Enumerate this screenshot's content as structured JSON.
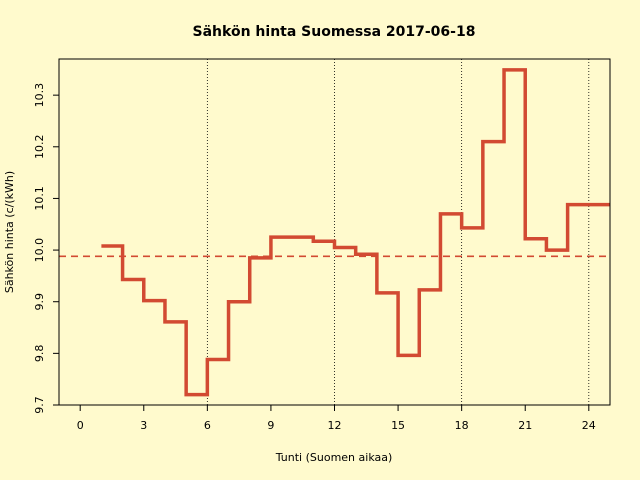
{
  "chart_data": {
    "type": "line",
    "title": "Sähkön hinta Suomessa 2017-06-18",
    "xlabel": "Tunti (Suomen aikaa)",
    "ylabel": "Sähkön hinta (c/(kWh)",
    "xlim": [
      -1,
      25
    ],
    "ylim": [
      9.7,
      10.37
    ],
    "xticks": [
      0,
      3,
      6,
      9,
      12,
      15,
      18,
      21,
      24
    ],
    "yticks": [
      9.7,
      9.8,
      9.9,
      10.0,
      10.1,
      10.2,
      10.3
    ],
    "ytick_labels": [
      "9.7",
      "9.8",
      "9.9",
      "10.0",
      "10.1",
      "10.2",
      "10.3"
    ],
    "vlines": [
      6,
      12,
      18,
      24
    ],
    "mean": 9.988,
    "grid": false,
    "colors": {
      "line": "#d24a32",
      "mean": "#d24a32",
      "background": "#fffacd"
    },
    "series": [
      {
        "x": [
          1,
          2,
          3,
          4,
          5,
          6,
          7,
          8,
          9,
          10,
          11,
          12,
          13,
          14,
          15,
          16,
          17,
          18,
          19,
          20,
          21,
          22,
          23,
          24
        ],
        "values": [
          10.008,
          9.943,
          9.902,
          9.861,
          9.72,
          9.788,
          9.9,
          9.985,
          10.025,
          10.025,
          10.017,
          10.005,
          9.992,
          9.917,
          9.796,
          9.923,
          10.07,
          10.043,
          10.21,
          10.349,
          10.022,
          10.0,
          10.088,
          10.088
        ]
      }
    ]
  }
}
